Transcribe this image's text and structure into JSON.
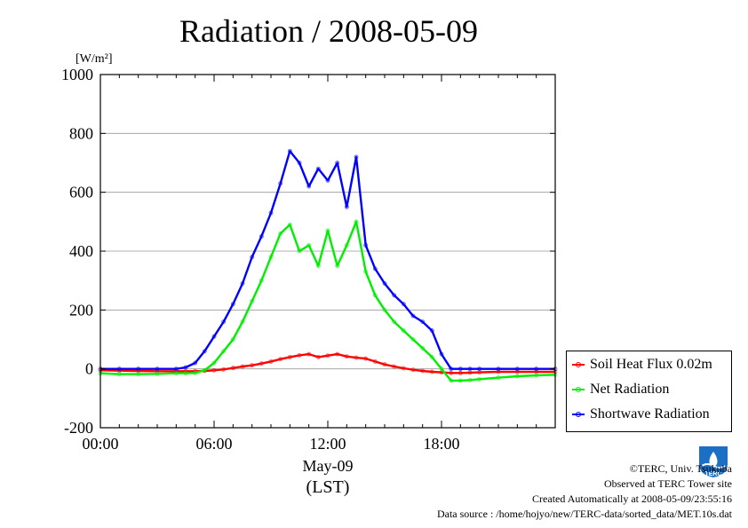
{
  "title": "Radiation / 2008-05-09",
  "chart_data": {
    "type": "line",
    "title": "Radiation / 2008-05-09",
    "ylabel": "[W/m²]",
    "xlabel": "(LST)",
    "x_date_label": "May-09",
    "ylim": [
      -200,
      1000
    ],
    "yticks": [
      -200,
      0,
      200,
      400,
      600,
      800,
      1000
    ],
    "xlim": [
      0,
      24
    ],
    "xticks": [
      0,
      6,
      12,
      18
    ],
    "xtick_labels": [
      "00:00",
      "06:00",
      "12:00",
      "18:00"
    ],
    "grid": true,
    "legend_position": "right",
    "x": [
      0,
      1,
      2,
      3,
      4,
      4.5,
      5,
      5.5,
      6,
      6.5,
      7,
      7.5,
      8,
      8.5,
      9,
      9.5,
      10,
      10.5,
      11,
      11.5,
      12,
      12.5,
      13,
      13.5,
      14,
      14.5,
      15,
      15.5,
      16,
      16.5,
      17,
      17.5,
      18,
      18.5,
      19,
      19.5,
      20,
      21,
      22,
      23,
      24
    ],
    "series": [
      {
        "name": "Soil Heat Flux 0.02m",
        "color": "#ff0000",
        "values": [
          -5,
          -6,
          -7,
          -8,
          -8,
          -8,
          -8,
          -7,
          -5,
          -2,
          3,
          8,
          12,
          18,
          25,
          33,
          40,
          46,
          50,
          40,
          45,
          50,
          42,
          38,
          35,
          25,
          15,
          8,
          2,
          -3,
          -7,
          -10,
          -12,
          -14,
          -14,
          -13,
          -12,
          -10,
          -10,
          -10,
          -10
        ]
      },
      {
        "name": "Net Radiation",
        "color": "#00ee00",
        "values": [
          -15,
          -18,
          -18,
          -17,
          -15,
          -15,
          -14,
          -5,
          20,
          60,
          100,
          160,
          230,
          300,
          380,
          460,
          490,
          400,
          420,
          350,
          470,
          350,
          420,
          500,
          330,
          250,
          200,
          160,
          130,
          100,
          70,
          40,
          0,
          -40,
          -40,
          -38,
          -35,
          -30,
          -25,
          -22,
          -20
        ]
      },
      {
        "name": "Shortwave Radiation",
        "color": "#0000ff",
        "values": [
          0,
          0,
          0,
          0,
          0,
          5,
          20,
          60,
          110,
          160,
          220,
          290,
          380,
          450,
          530,
          630,
          740,
          700,
          620,
          680,
          640,
          700,
          550,
          720,
          420,
          340,
          290,
          250,
          220,
          180,
          160,
          130,
          50,
          0,
          0,
          0,
          0,
          0,
          0,
          0,
          0
        ]
      }
    ]
  },
  "credits": {
    "copyright": "©TERC, Univ. Tsukuba",
    "observed": "Observed at TERC Tower site",
    "created": "Created Automatically at 2008-05-09/23:55:16",
    "source": "Data source : /home/hojyo/new/TERC-data/sorted_data/MET.10s.dat"
  },
  "logo": {
    "text": "TERC",
    "color": "#1b6fc4"
  }
}
